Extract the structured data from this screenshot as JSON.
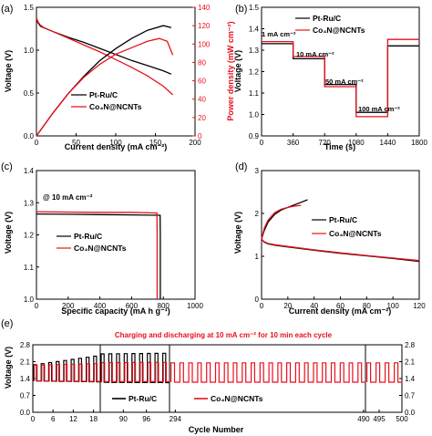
{
  "figure": {
    "colors": {
      "black": "#000000",
      "red": "#e8101c",
      "axis": "#000000"
    }
  },
  "chart_data": [
    {
      "id": "a",
      "panel_label": "(a)",
      "type": "line",
      "xlabel": "Current density (mA cm⁻²)",
      "ylabel": "Voltage (V)",
      "y2label": "Power density (mW cm⁻²)",
      "xlim": [
        0,
        200
      ],
      "ylim": [
        0,
        1.5
      ],
      "y2lim": [
        0,
        140
      ],
      "xticks": [
        0,
        50,
        100,
        150,
        200
      ],
      "yticks": [
        0.0,
        0.5,
        1.0,
        1.5
      ],
      "y2ticks": [
        0,
        20,
        40,
        60,
        80,
        100,
        120,
        140
      ],
      "legend": [
        "Pt-Ru/C",
        "Co₄N@NCNTs"
      ],
      "series": [
        {
          "name": "Pt-Ru/C",
          "axis": "y",
          "color": "black",
          "x": [
            0,
            2,
            5,
            10,
            20,
            40,
            60,
            80,
            100,
            120,
            140,
            160,
            170
          ],
          "y": [
            1.36,
            1.32,
            1.28,
            1.26,
            1.22,
            1.15,
            1.09,
            1.02,
            0.95,
            0.88,
            0.82,
            0.76,
            0.72
          ]
        },
        {
          "name": "Co₄N@NCNTs",
          "axis": "y",
          "color": "red",
          "x": [
            0,
            2,
            5,
            10,
            20,
            40,
            60,
            80,
            100,
            120,
            140,
            160,
            172
          ],
          "y": [
            1.38,
            1.33,
            1.29,
            1.26,
            1.22,
            1.14,
            1.06,
            0.98,
            0.89,
            0.8,
            0.7,
            0.58,
            0.48
          ]
        },
        {
          "name": "Pt-Ru/C",
          "axis": "y2",
          "color": "black",
          "x": [
            0,
            20,
            40,
            60,
            80,
            100,
            120,
            140,
            160,
            170
          ],
          "y": [
            0,
            24,
            46,
            65,
            82,
            95,
            106,
            115,
            120,
            118
          ]
        },
        {
          "name": "Co₄N@NCNTs",
          "axis": "y2",
          "color": "red",
          "x": [
            0,
            20,
            40,
            60,
            80,
            100,
            120,
            140,
            155,
            165,
            172
          ],
          "y": [
            0,
            24,
            46,
            64,
            78,
            89,
            96,
            103,
            106,
            103,
            88
          ]
        }
      ]
    },
    {
      "id": "b",
      "panel_label": "(b)",
      "type": "line",
      "xlabel": "Time (s)",
      "ylabel": "Voltage (V)",
      "xlim": [
        0,
        1800
      ],
      "ylim": [
        0.9,
        1.5
      ],
      "xticks": [
        0,
        360,
        720,
        1080,
        1440,
        1800
      ],
      "yticks": [
        0.9,
        1.0,
        1.1,
        1.2,
        1.3,
        1.4,
        1.5
      ],
      "legend": [
        "Pt-Ru/C",
        "Co₄N@NCNTs"
      ],
      "annotations": [
        "1 mA cm⁻²",
        "10 mA cm⁻²",
        "50 mA cm⁻²",
        "100 mA cm⁻²"
      ],
      "series": [
        {
          "name": "Pt-Ru/C",
          "color": "black",
          "x": [
            0,
            360,
            360,
            720,
            720,
            1080,
            1080,
            1440,
            1440,
            1800
          ],
          "y": [
            1.33,
            1.33,
            1.26,
            1.26,
            1.14,
            1.14,
            1.01,
            1.01,
            1.32,
            1.32
          ]
        },
        {
          "name": "Co₄N@NCNTs",
          "color": "red",
          "x": [
            0,
            360,
            360,
            720,
            720,
            1080,
            1080,
            1440,
            1440,
            1800
          ],
          "y": [
            1.34,
            1.34,
            1.27,
            1.27,
            1.13,
            1.13,
            0.99,
            0.99,
            1.35,
            1.35
          ]
        }
      ]
    },
    {
      "id": "c",
      "panel_label": "(c)",
      "type": "line",
      "xlabel": "Specific capacity (mA h g⁻¹)",
      "ylabel": "Voltage (V)",
      "xlim": [
        0,
        1000
      ],
      "ylim": [
        1.0,
        1.4
      ],
      "xticks": [
        0,
        200,
        400,
        600,
        800,
        1000
      ],
      "yticks": [
        1.0,
        1.1,
        1.2,
        1.3,
        1.4
      ],
      "legend": [
        "Pt-Ru/C",
        "Co₄N@NCNTs"
      ],
      "annotations": [
        "@ 10 mA cm⁻²"
      ],
      "series": [
        {
          "name": "Pt-Ru/C",
          "color": "black",
          "x": [
            0,
            200,
            400,
            600,
            780,
            781,
            781
          ],
          "y": [
            1.265,
            1.264,
            1.263,
            1.262,
            1.261,
            1.2,
            1.0
          ]
        },
        {
          "name": "Co₄N@NCNTs",
          "color": "red",
          "x": [
            0,
            200,
            400,
            600,
            760,
            761,
            761
          ],
          "y": [
            1.272,
            1.271,
            1.27,
            1.27,
            1.268,
            1.2,
            1.0
          ]
        }
      ]
    },
    {
      "id": "d",
      "panel_label": "(d)",
      "type": "line",
      "xlabel": "Current density (mA cm⁻²)",
      "ylabel": "Voltage (V)",
      "xlim": [
        0,
        120
      ],
      "ylim": [
        0,
        3
      ],
      "xticks": [
        0,
        20,
        40,
        60,
        80,
        100,
        120
      ],
      "yticks": [
        0,
        1,
        2,
        3
      ],
      "legend": [
        "Pt-Ru/C",
        "Co₄N@NCNTs"
      ],
      "series": [
        {
          "name": "Pt-Ru/C discharge",
          "color": "black",
          "x": [
            0,
            2,
            5,
            10,
            20,
            40,
            60,
            80,
            100,
            120
          ],
          "y": [
            1.4,
            1.33,
            1.29,
            1.26,
            1.22,
            1.14,
            1.07,
            1.01,
            0.95,
            0.88
          ]
        },
        {
          "name": "Co₄N@NCNTs discharge",
          "color": "red",
          "x": [
            0,
            2,
            5,
            10,
            20,
            40,
            60,
            80,
            100,
            120
          ],
          "y": [
            1.4,
            1.34,
            1.3,
            1.27,
            1.23,
            1.15,
            1.08,
            1.02,
            0.96,
            0.9
          ]
        },
        {
          "name": "Pt-Ru/C charge",
          "color": "black",
          "x": [
            0,
            2,
            5,
            10,
            15,
            20,
            25,
            30,
            35
          ],
          "y": [
            1.4,
            1.6,
            1.8,
            1.98,
            2.08,
            2.14,
            2.2,
            2.26,
            2.32
          ]
        },
        {
          "name": "Co₄N@NCNTs charge",
          "color": "red",
          "x": [
            0,
            2,
            5,
            10,
            15,
            20,
            25,
            30
          ],
          "y": [
            1.4,
            1.65,
            1.85,
            2.02,
            2.1,
            2.14,
            2.17,
            2.19
          ]
        }
      ]
    },
    {
      "id": "e",
      "panel_label": "(e)",
      "type": "line",
      "title": "Charging and discharging at 10 mA cm⁻² for 10 min each cycle",
      "xlabel": "Cycle  Number",
      "ylabel": "Voltage (V)",
      "ylim": [
        0,
        2.8
      ],
      "yticks": [
        0.0,
        0.7,
        1.4,
        2.1,
        2.8
      ],
      "y2ticks": [
        0.0,
        0.7,
        1.4,
        2.1,
        2.8
      ],
      "segments": [
        {
          "xlim": [
            0,
            20
          ],
          "xticks": [
            0,
            6,
            12,
            18
          ]
        },
        {
          "xlim": [
            84,
            102
          ],
          "xticks": [
            90,
            96
          ]
        },
        {
          "xlim": [
            288,
            492
          ],
          "xticks": [
            294,
            490
          ]
        },
        {
          "xlim": [
            492,
            500
          ],
          "xticks": [
            495,
            500
          ]
        }
      ],
      "legend": [
        "Pt-Ru/C",
        "Co₄N@NCNTs"
      ],
      "series": [
        {
          "name": "Pt-Ru/C",
          "color": "black",
          "x": [
            0,
            20,
            84,
            102
          ],
          "charge_y": [
            1.95,
            2.35,
            2.42,
            2.45
          ],
          "discharge_y": [
            1.3,
            1.26,
            1.24,
            1.23
          ]
        },
        {
          "name": "Co₄N@NCNTs",
          "color": "red",
          "x": [
            0,
            20,
            84,
            102,
            288,
            500
          ],
          "charge_y": [
            1.95,
            2.02,
            2.06,
            2.07,
            2.05,
            2.05
          ],
          "discharge_y": [
            1.3,
            1.28,
            1.27,
            1.27,
            1.25,
            1.25
          ]
        }
      ]
    }
  ]
}
